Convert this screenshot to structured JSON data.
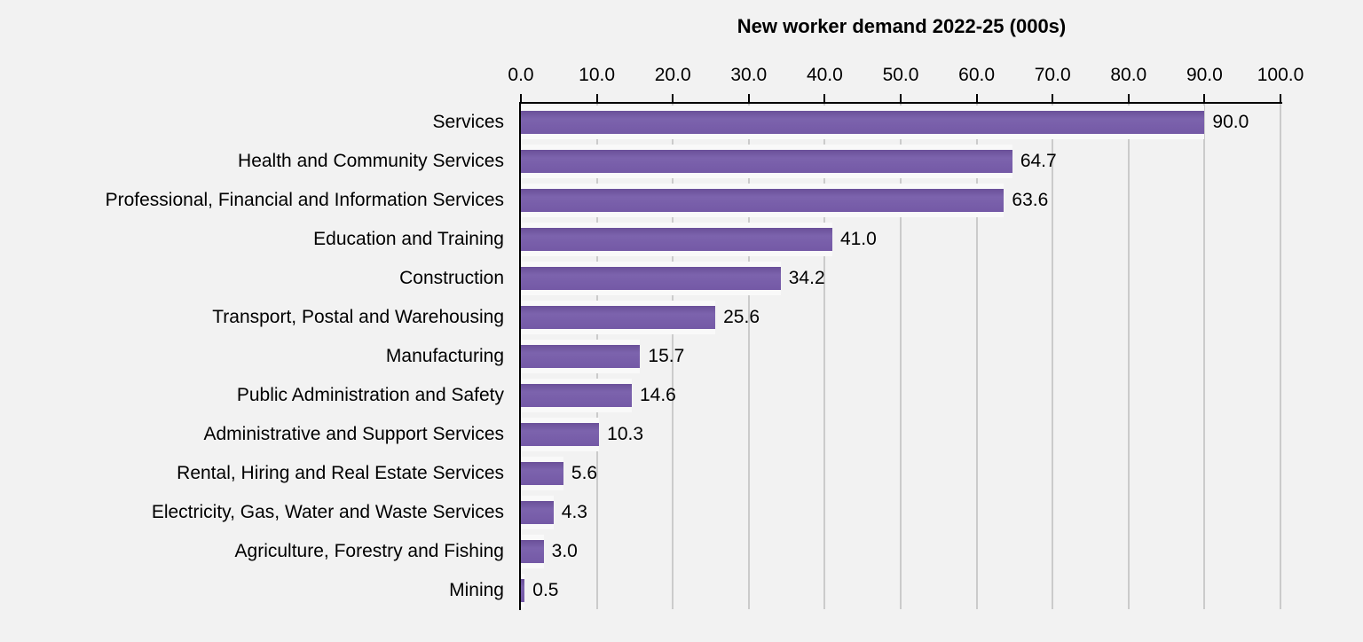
{
  "chart_data": {
    "type": "bar",
    "orientation": "horizontal",
    "title": "New worker demand 2022-25 (000s)",
    "categories": [
      "Services",
      "Health and Community Services",
      "Professional, Financial and Information Services",
      "Education and Training",
      "Construction",
      "Transport, Postal and Warehousing",
      "Manufacturing",
      "Public Administration and Safety",
      "Administrative and Support Services",
      "Rental, Hiring and Real Estate Services",
      "Electricity, Gas, Water and Waste Services",
      "Agriculture, Forestry and Fishing",
      "Mining"
    ],
    "values": [
      90.0,
      64.7,
      63.6,
      41.0,
      34.2,
      25.6,
      15.7,
      14.6,
      10.3,
      5.6,
      4.3,
      3.0,
      0.5
    ],
    "value_labels": [
      "90.0",
      "64.7",
      "63.6",
      "41.0",
      "34.2",
      "25.6",
      "15.7",
      "14.6",
      "10.3",
      "5.6",
      "4.3",
      "3.0",
      "0.5"
    ],
    "xlim": [
      0,
      100
    ],
    "tick_labels": [
      "0.0",
      "10.0",
      "20.0",
      "30.0",
      "40.0",
      "50.0",
      "60.0",
      "70.0",
      "80.0",
      "90.0",
      "100.0"
    ],
    "grid": true,
    "legend": null,
    "colors": {
      "bar": "#7459A6",
      "axis": "#000000",
      "gridline": "#CBCBCB",
      "background": "#F2F2F2",
      "text": "#000000"
    }
  }
}
